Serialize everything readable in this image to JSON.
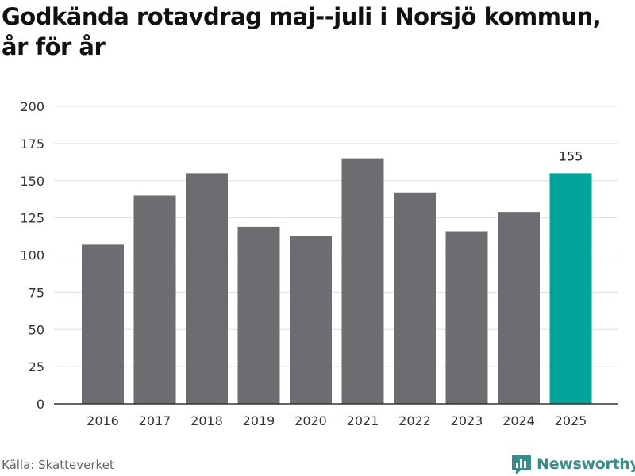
{
  "header": {
    "title_line1": "Godkända rotavdrag maj--juli i Norsjö kommun,",
    "title_line2": "år för år"
  },
  "footer": {
    "source": "Källa: Skatteverket",
    "brand": "Newsworthy"
  },
  "colors": {
    "bar": "#6d6c71",
    "highlight": "#00a49a",
    "grid": "#dddddd",
    "brand": "#3a8c8a"
  },
  "chart_data": {
    "type": "bar",
    "title": "Godkända rotavdrag maj--juli i Norsjö kommun, år för år",
    "categories": [
      "2016",
      "2017",
      "2018",
      "2019",
      "2020",
      "2021",
      "2022",
      "2023",
      "2024",
      "2025"
    ],
    "values": [
      107,
      140,
      155,
      119,
      113,
      165,
      142,
      116,
      129,
      155
    ],
    "highlight_index": 9,
    "data_labels": {
      "9": "155"
    },
    "ylim": [
      0,
      200
    ],
    "yticks": [
      0,
      25,
      50,
      75,
      100,
      125,
      150,
      175,
      200
    ],
    "xlabel": "",
    "ylabel": "",
    "grid": true,
    "legend": "none"
  }
}
